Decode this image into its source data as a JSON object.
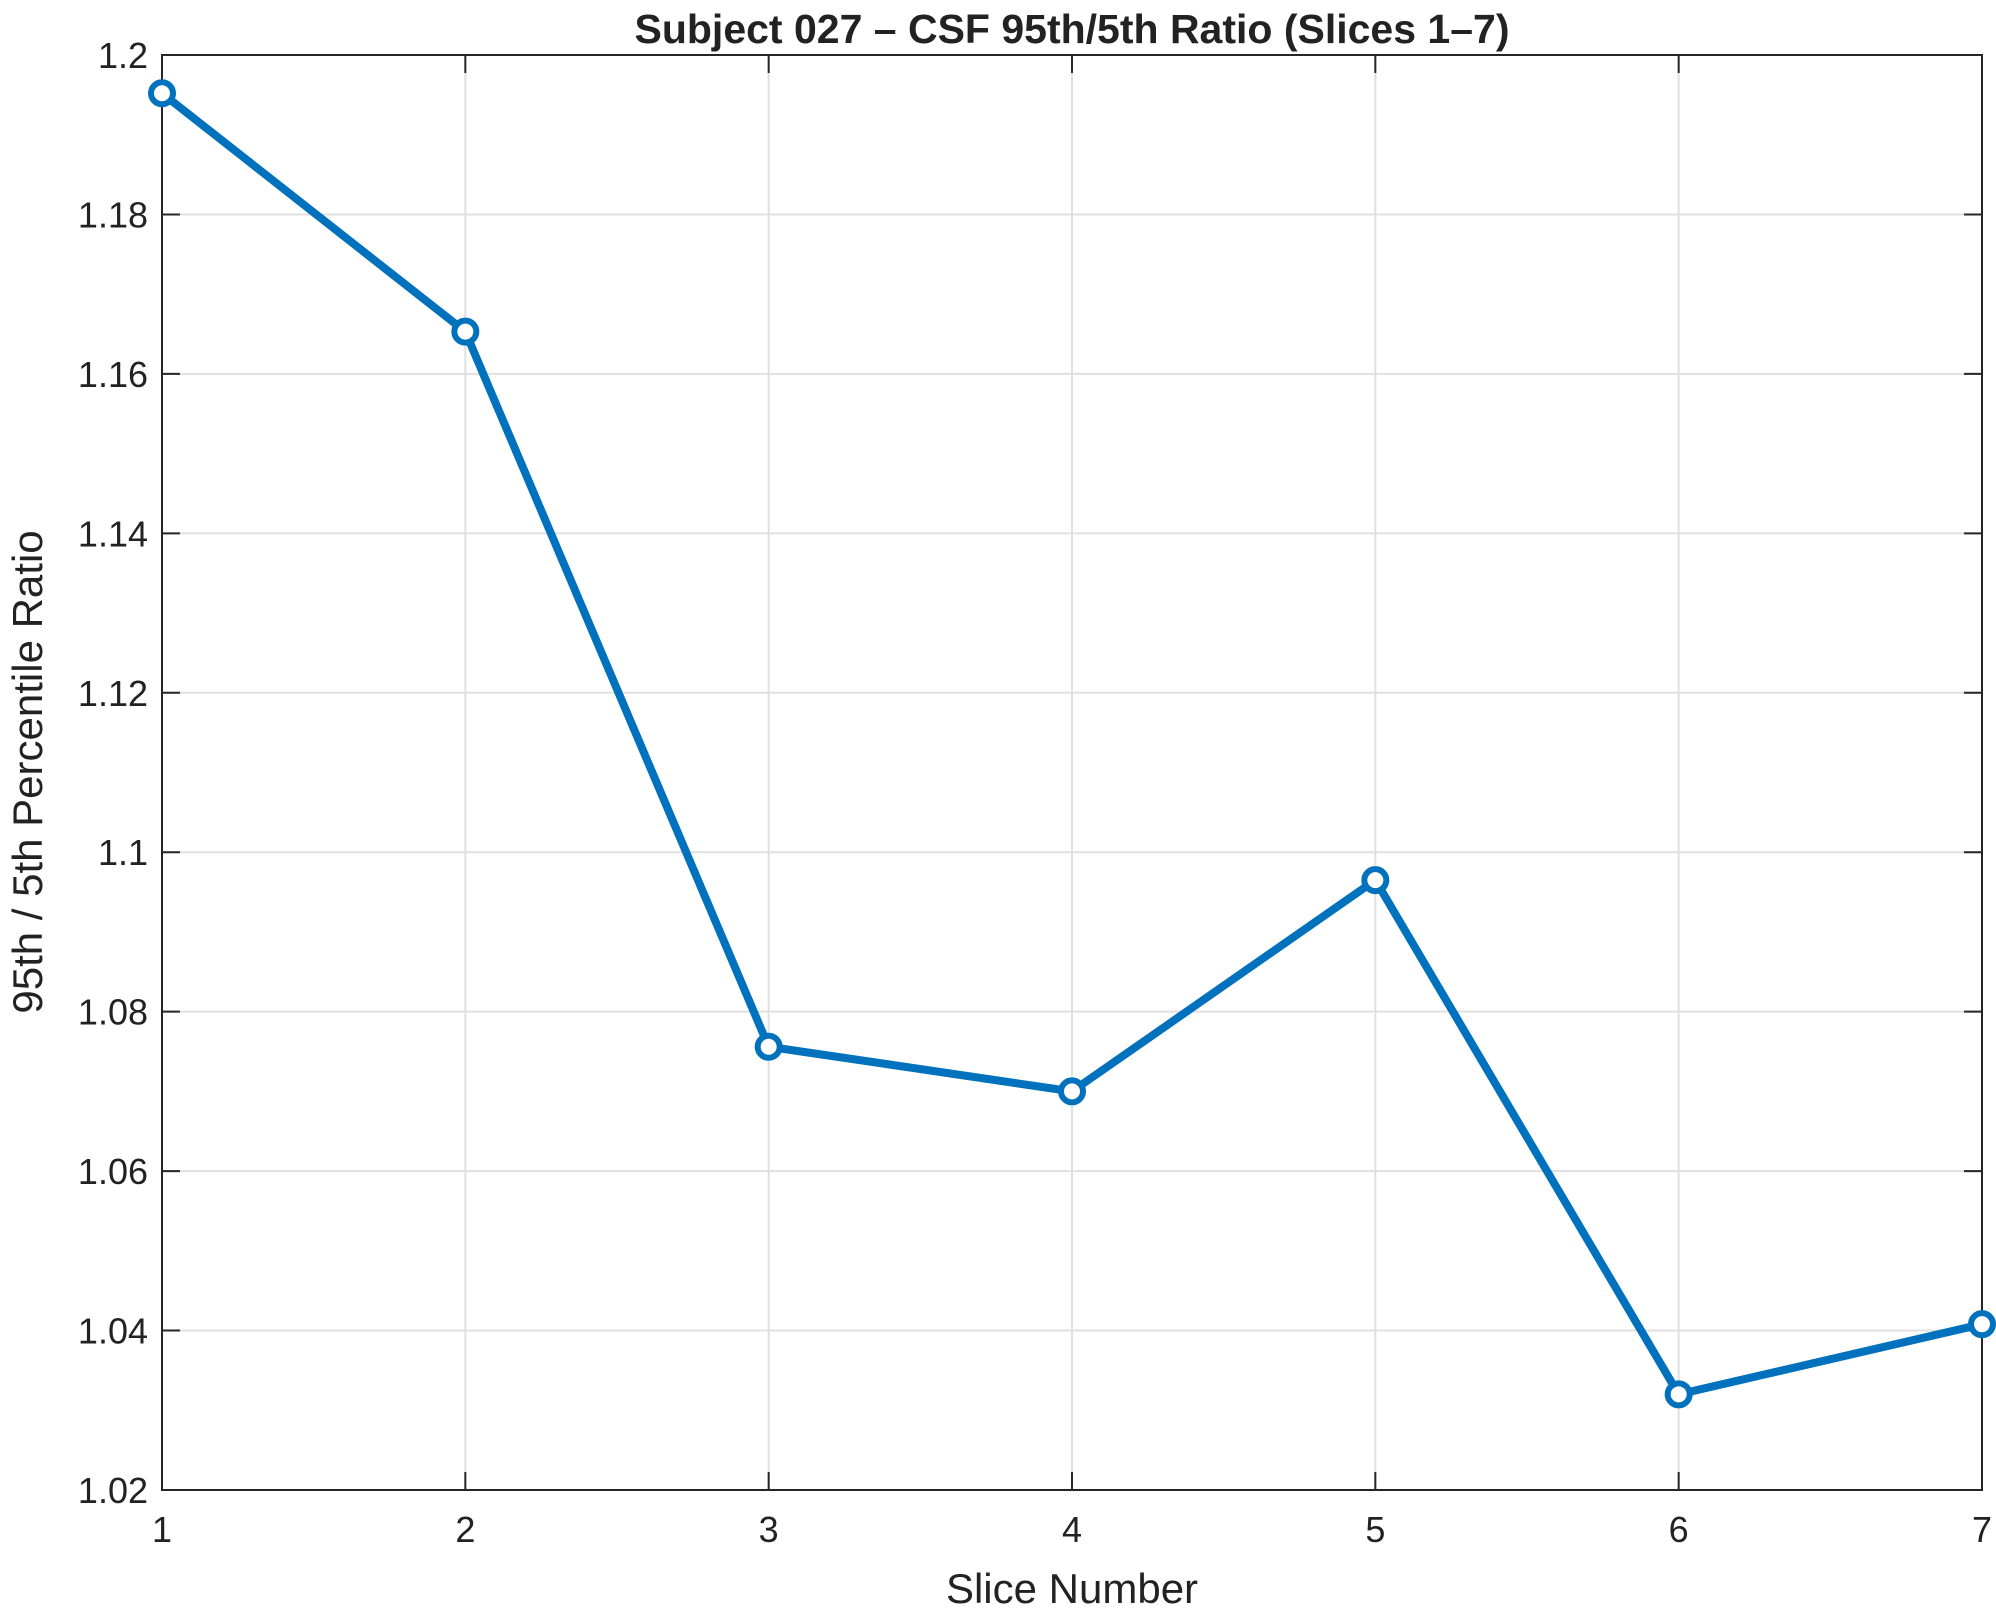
{
  "chart_data": {
    "type": "line",
    "title": "Subject 027 – CSF 95th/5th Ratio (Slices 1–7)",
    "xlabel": "Slice Number",
    "ylabel": "95th / 5th Percentile Ratio",
    "x": [
      1,
      2,
      3,
      4,
      5,
      6,
      7
    ],
    "series": [
      {
        "values": [
          1.1952,
          1.1653,
          1.0756,
          1.07,
          1.0965,
          1.032,
          1.0408
        ]
      }
    ],
    "xlim": [
      1,
      7
    ],
    "ylim": [
      1.02,
      1.2
    ],
    "xticks": [
      "1",
      "2",
      "3",
      "4",
      "5",
      "6",
      "7"
    ],
    "yticks": [
      "1.02",
      "1.04",
      "1.06",
      "1.08",
      "1.1",
      "1.12",
      "1.14",
      "1.16",
      "1.18",
      "1.2"
    ],
    "grid": true,
    "marker": "circle",
    "colors": {
      "line": "#0072BD",
      "axes": "#262626",
      "grid": "#E0E0E0"
    }
  }
}
